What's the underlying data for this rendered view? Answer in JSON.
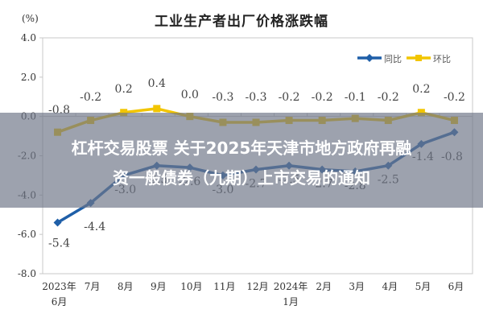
{
  "headline": {
    "line1": "杠杆交易股票 关于2025年天津市地方政府再融",
    "line2": "资一般债券（九期）上市交易的通知"
  },
  "chart_data": {
    "type": "line",
    "title": "工业生产者出厂价格涨跌幅",
    "ylabel": "(%)",
    "xlabel": "",
    "ylim": [
      -8.0,
      4.0
    ],
    "yticks": [
      "4.0",
      "2.0",
      "0.0",
      "-2.0",
      "-4.0",
      "-6.0",
      "-8.0"
    ],
    "grid": false,
    "legend_position": "top-right",
    "categories": [
      "2023年6月",
      "7月",
      "8月",
      "9月",
      "10月",
      "11月",
      "12月",
      "2024年1月",
      "2月",
      "3月",
      "4月",
      "5月",
      "6月"
    ],
    "category_lines": [
      [
        "2023年",
        "6月"
      ],
      [
        "7月"
      ],
      [
        "8月"
      ],
      [
        "9月"
      ],
      [
        "10月"
      ],
      [
        "11月"
      ],
      [
        "12月"
      ],
      [
        "2024年",
        "1月"
      ],
      [
        "2月"
      ],
      [
        "3月"
      ],
      [
        "4月"
      ],
      [
        "5月"
      ],
      [
        "6月"
      ]
    ],
    "series": [
      {
        "name": "同比",
        "color": "#1f5fa8",
        "marker": "diamond",
        "values": [
          -5.4,
          -4.4,
          -3.0,
          -2.5,
          -2.6,
          -3.0,
          -2.7,
          -2.5,
          -2.7,
          -2.8,
          -2.5,
          -1.4,
          -0.8
        ],
        "labels": [
          "-5.4",
          "-4.4",
          "-3.0",
          "-2.5",
          "-2.6",
          "-3.0",
          "-2.7",
          "-2.5",
          "-2.7",
          "-2.8",
          "-2.5",
          "-1.4",
          "-0.8"
        ]
      },
      {
        "name": "环比",
        "color": "#f2c500",
        "marker": "square",
        "values": [
          -0.8,
          -0.2,
          0.2,
          0.4,
          0.0,
          -0.3,
          -0.3,
          -0.2,
          -0.2,
          -0.1,
          -0.2,
          0.2,
          -0.2
        ],
        "labels": [
          "-0.8",
          "-0.2",
          "0.2",
          "0.4",
          "0.0",
          "-0.3",
          "-0.3",
          "-0.2",
          "-0.2",
          "-0.1",
          "-0.2",
          "0.2",
          "-0.2"
        ]
      }
    ]
  }
}
